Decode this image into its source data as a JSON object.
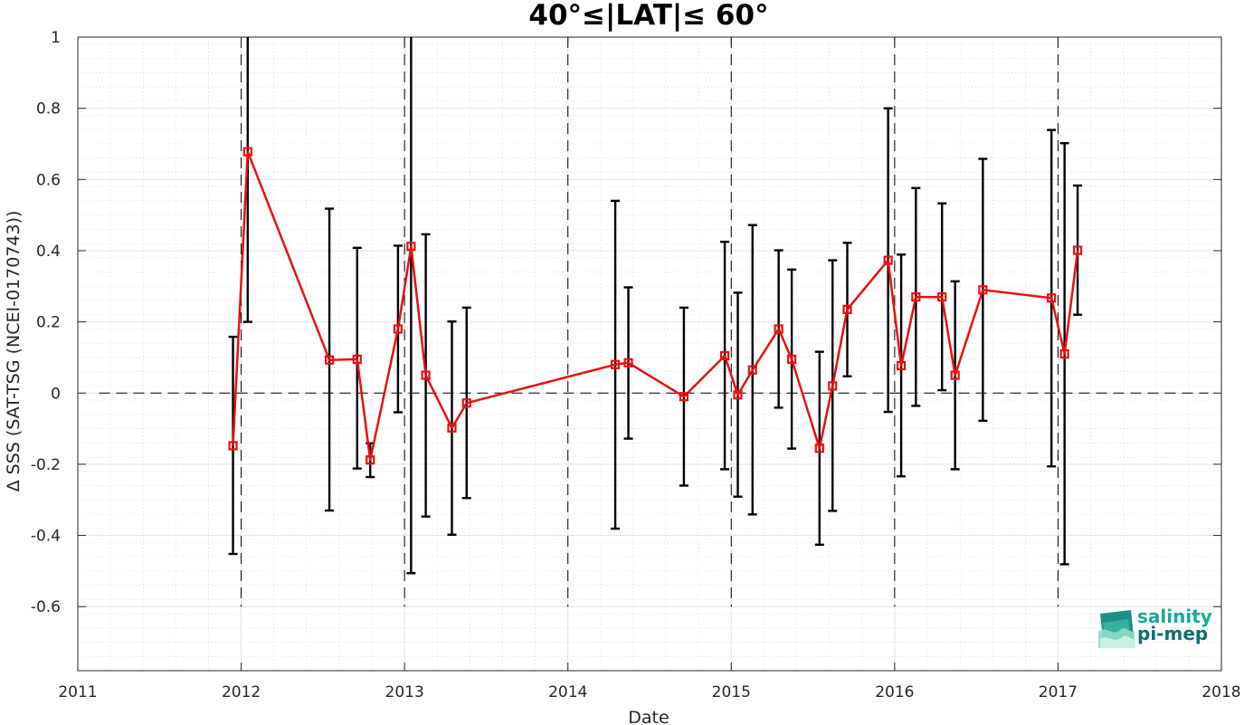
{
  "chart_data": {
    "type": "line",
    "title": "40°≤|LAT|≤ 60°",
    "xlabel": "Date",
    "ylabel": "Δ SSS (SAT-TSG (NCEI-0170743))",
    "xlim": [
      2011,
      2018
    ],
    "ylim": [
      -0.78,
      1.0
    ],
    "x_ticks": [
      2011,
      2012,
      2013,
      2014,
      2015,
      2016,
      2017,
      2018
    ],
    "x_tick_labels": [
      "2011",
      "2012",
      "2013",
      "2014",
      "2015",
      "2016",
      "2017",
      "2018"
    ],
    "y_ticks": [
      -0.6,
      -0.4,
      -0.2,
      0,
      0.2,
      0.4,
      0.6,
      0.8,
      1
    ],
    "y_tick_labels": [
      "-0.6",
      "-0.4",
      "-0.2",
      "0",
      "0.2",
      "0.4",
      "0.6",
      "0.8",
      "1"
    ],
    "grid": true,
    "minor_grid": true,
    "year_markers": [
      2012,
      2013,
      2014,
      2015,
      2016,
      2017
    ],
    "zero_line": 0,
    "series": [
      {
        "color": "#e81010",
        "marker": "square",
        "error_bar_color": "#000000",
        "points": [
          {
            "x": 2011.95,
            "y": -0.148,
            "lo": -0.452,
            "hi": 0.158
          },
          {
            "x": 2012.04,
            "y": 0.678,
            "lo": 0.2,
            "hi": 1.0
          },
          {
            "x": 2012.54,
            "y": 0.093,
            "lo": -0.33,
            "hi": 0.518
          },
          {
            "x": 2012.71,
            "y": 0.095,
            "lo": -0.212,
            "hi": 0.408
          },
          {
            "x": 2012.79,
            "y": -0.188,
            "lo": -0.236,
            "hi": -0.141
          },
          {
            "x": 2012.96,
            "y": 0.18,
            "lo": -0.054,
            "hi": 0.414
          },
          {
            "x": 2013.04,
            "y": 0.412,
            "lo": -0.506,
            "hi": 1.0
          },
          {
            "x": 2013.13,
            "y": 0.05,
            "lo": -0.347,
            "hi": 0.446
          },
          {
            "x": 2013.29,
            "y": -0.098,
            "lo": -0.398,
            "hi": 0.201
          },
          {
            "x": 2013.38,
            "y": -0.028,
            "lo": -0.295,
            "hi": 0.24
          },
          {
            "x": 2014.29,
            "y": 0.08,
            "lo": -0.381,
            "hi": 0.54
          },
          {
            "x": 2014.37,
            "y": 0.085,
            "lo": -0.128,
            "hi": 0.297
          },
          {
            "x": 2014.71,
            "y": -0.01,
            "lo": -0.26,
            "hi": 0.24
          },
          {
            "x": 2014.96,
            "y": 0.105,
            "lo": -0.214,
            "hi": 0.425
          },
          {
            "x": 2015.04,
            "y": -0.005,
            "lo": -0.291,
            "hi": 0.282
          },
          {
            "x": 2015.13,
            "y": 0.065,
            "lo": -0.341,
            "hi": 0.472
          },
          {
            "x": 2015.29,
            "y": 0.18,
            "lo": -0.041,
            "hi": 0.401
          },
          {
            "x": 2015.37,
            "y": 0.095,
            "lo": -0.156,
            "hi": 0.347
          },
          {
            "x": 2015.54,
            "y": -0.155,
            "lo": -0.426,
            "hi": 0.116
          },
          {
            "x": 2015.62,
            "y": 0.02,
            "lo": -0.331,
            "hi": 0.373
          },
          {
            "x": 2015.71,
            "y": 0.235,
            "lo": 0.047,
            "hi": 0.422
          },
          {
            "x": 2015.96,
            "y": 0.373,
            "lo": -0.053,
            "hi": 0.8
          },
          {
            "x": 2016.04,
            "y": 0.077,
            "lo": -0.234,
            "hi": 0.389
          },
          {
            "x": 2016.13,
            "y": 0.27,
            "lo": -0.036,
            "hi": 0.576
          },
          {
            "x": 2016.29,
            "y": 0.27,
            "lo": 0.008,
            "hi": 0.533
          },
          {
            "x": 2016.37,
            "y": 0.05,
            "lo": -0.214,
            "hi": 0.314
          },
          {
            "x": 2016.54,
            "y": 0.29,
            "lo": -0.078,
            "hi": 0.658
          },
          {
            "x": 2016.96,
            "y": 0.267,
            "lo": -0.206,
            "hi": 0.739
          },
          {
            "x": 2017.04,
            "y": 0.11,
            "lo": -0.481,
            "hi": 0.702
          },
          {
            "x": 2017.12,
            "y": 0.401,
            "lo": 0.22,
            "hi": 0.583
          }
        ]
      }
    ]
  },
  "logo": {
    "line1": "salinity",
    "line2": "pi-mep",
    "color1": "#1aa99a",
    "color2": "#0e6f73"
  }
}
